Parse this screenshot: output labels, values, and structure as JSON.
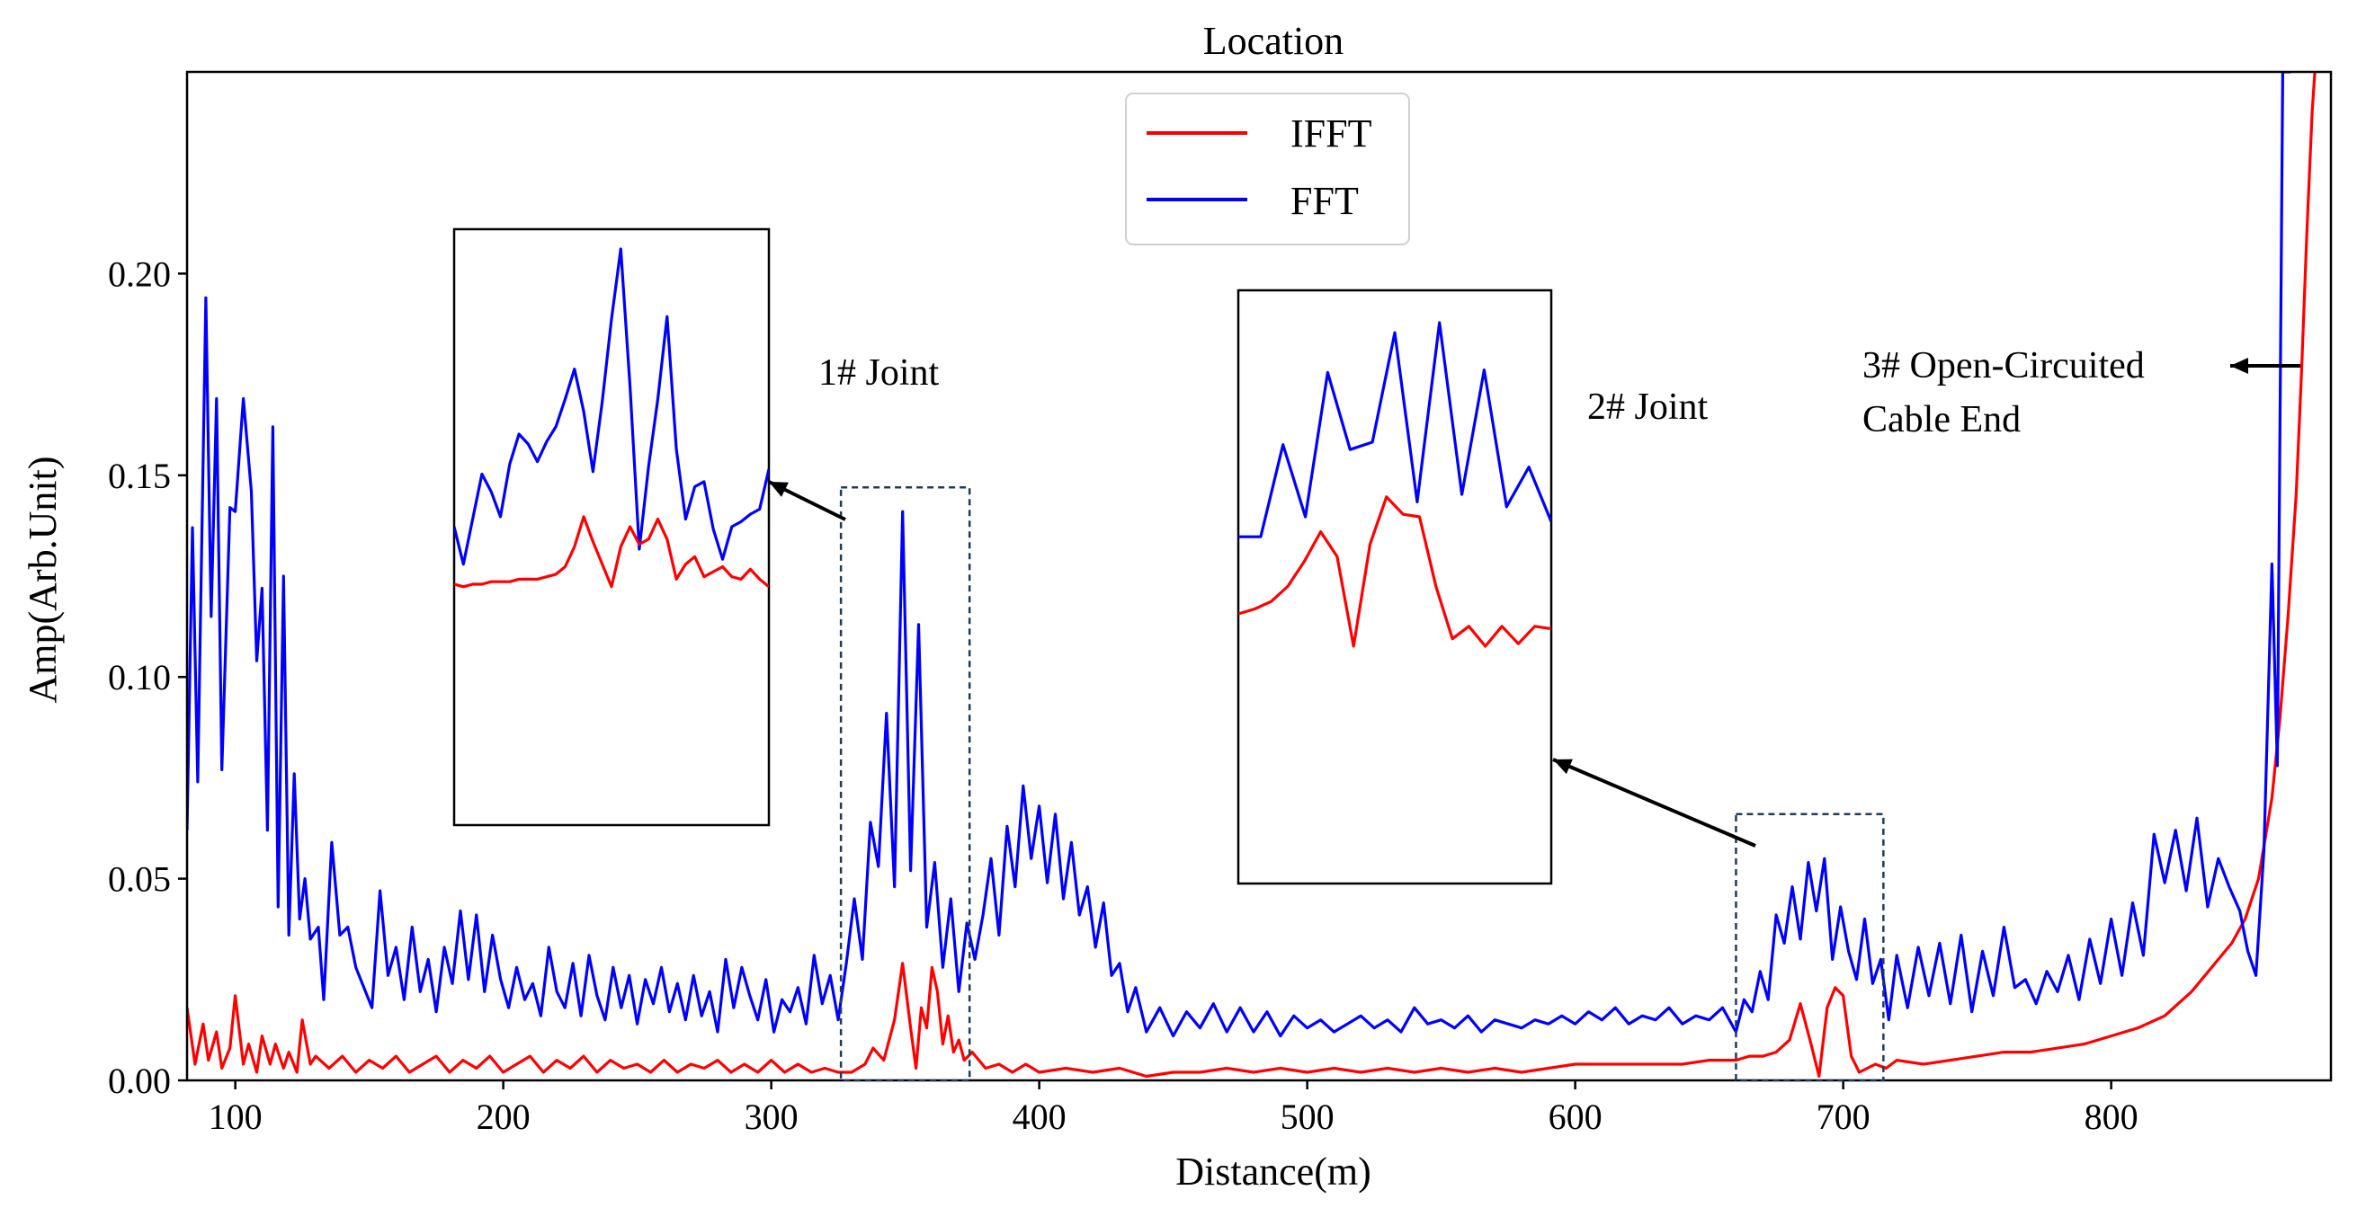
{
  "chart_data": {
    "type": "line",
    "title": "Location",
    "xlabel": "Distance(m)",
    "ylabel": "Amp(Arb.Unit)",
    "xlim": [
      82,
      882
    ],
    "ylim": [
      0,
      0.25
    ],
    "xticks": [
      100,
      200,
      300,
      400,
      500,
      600,
      700,
      800
    ],
    "yticks": [
      0.0,
      0.05,
      0.1,
      0.15,
      0.2
    ],
    "ytick_labels": [
      "0.00",
      "0.05",
      "0.10",
      "0.15",
      "0.20"
    ],
    "legend": {
      "position": "top-center",
      "entries": [
        "IFFT",
        "FFT"
      ]
    },
    "series": [
      {
        "name": "IFFT",
        "color": "#ff0000",
        "x": [
          82,
          85,
          88,
          90,
          93,
          95,
          98,
          100,
          103,
          105,
          108,
          110,
          113,
          115,
          118,
          120,
          123,
          125,
          128,
          130,
          135,
          140,
          145,
          150,
          155,
          160,
          165,
          170,
          175,
          180,
          185,
          190,
          195,
          200,
          205,
          210,
          215,
          220,
          225,
          230,
          235,
          240,
          245,
          250,
          255,
          260,
          265,
          270,
          275,
          280,
          285,
          290,
          295,
          300,
          305,
          310,
          315,
          320,
          325,
          330,
          335,
          338,
          342,
          346,
          349,
          352,
          354,
          356,
          358,
          360,
          362,
          364,
          366,
          368,
          370,
          372,
          375,
          380,
          385,
          390,
          395,
          400,
          410,
          420,
          430,
          440,
          450,
          460,
          470,
          480,
          490,
          500,
          510,
          520,
          530,
          540,
          550,
          560,
          570,
          580,
          590,
          600,
          610,
          620,
          630,
          640,
          650,
          660,
          665,
          670,
          675,
          680,
          684,
          688,
          691,
          694,
          697,
          700,
          703,
          706,
          709,
          712,
          716,
          720,
          730,
          740,
          750,
          760,
          770,
          780,
          790,
          800,
          810,
          820,
          830,
          840,
          845,
          850,
          855,
          860,
          863,
          866,
          869,
          871,
          873,
          875,
          876
        ],
        "values": [
          0.018,
          0.004,
          0.014,
          0.005,
          0.012,
          0.003,
          0.008,
          0.021,
          0.004,
          0.009,
          0.002,
          0.011,
          0.004,
          0.009,
          0.003,
          0.007,
          0.002,
          0.015,
          0.004,
          0.006,
          0.003,
          0.006,
          0.002,
          0.005,
          0.003,
          0.006,
          0.002,
          0.004,
          0.006,
          0.002,
          0.005,
          0.003,
          0.006,
          0.002,
          0.004,
          0.006,
          0.002,
          0.005,
          0.003,
          0.006,
          0.002,
          0.005,
          0.003,
          0.004,
          0.002,
          0.005,
          0.002,
          0.004,
          0.003,
          0.005,
          0.002,
          0.004,
          0.002,
          0.005,
          0.002,
          0.004,
          0.002,
          0.003,
          0.002,
          0.002,
          0.004,
          0.008,
          0.005,
          0.015,
          0.029,
          0.013,
          0.003,
          0.018,
          0.013,
          0.028,
          0.022,
          0.009,
          0.016,
          0.007,
          0.01,
          0.005,
          0.007,
          0.003,
          0.004,
          0.002,
          0.004,
          0.002,
          0.003,
          0.002,
          0.003,
          0.001,
          0.002,
          0.002,
          0.003,
          0.002,
          0.003,
          0.002,
          0.003,
          0.002,
          0.003,
          0.002,
          0.003,
          0.002,
          0.003,
          0.002,
          0.003,
          0.004,
          0.004,
          0.004,
          0.004,
          0.004,
          0.005,
          0.005,
          0.006,
          0.006,
          0.007,
          0.01,
          0.019,
          0.009,
          0.001,
          0.018,
          0.023,
          0.021,
          0.006,
          0.002,
          0.003,
          0.004,
          0.003,
          0.005,
          0.004,
          0.005,
          0.006,
          0.007,
          0.007,
          0.008,
          0.009,
          0.011,
          0.013,
          0.016,
          0.022,
          0.03,
          0.034,
          0.04,
          0.05,
          0.07,
          0.09,
          0.115,
          0.145,
          0.175,
          0.21,
          0.24,
          0.25
        ]
      },
      {
        "name": "FFT",
        "color": "#0000ff",
        "x": [
          82,
          84,
          86,
          89,
          91,
          93,
          95,
          98,
          100,
          103,
          106,
          108,
          110,
          112,
          114,
          116,
          118,
          120,
          122,
          124,
          126,
          128,
          131,
          133,
          136,
          139,
          142,
          145,
          148,
          151,
          154,
          157,
          160,
          163,
          166,
          169,
          172,
          175,
          178,
          181,
          184,
          187,
          190,
          193,
          196,
          199,
          202,
          205,
          208,
          211,
          214,
          217,
          220,
          223,
          226,
          229,
          232,
          235,
          238,
          241,
          244,
          247,
          250,
          253,
          256,
          259,
          262,
          265,
          268,
          271,
          274,
          277,
          280,
          283,
          286,
          289,
          292,
          295,
          298,
          301,
          304,
          307,
          310,
          313,
          316,
          319,
          322,
          325,
          328,
          331,
          334,
          337,
          340,
          343,
          346,
          349,
          352,
          355,
          358,
          361,
          364,
          367,
          370,
          373,
          376,
          379,
          382,
          385,
          388,
          391,
          394,
          397,
          400,
          403,
          406,
          409,
          412,
          415,
          418,
          421,
          424,
          427,
          430,
          433,
          436,
          440,
          445,
          450,
          455,
          460,
          465,
          470,
          475,
          480,
          485,
          490,
          495,
          500,
          505,
          510,
          515,
          520,
          525,
          530,
          535,
          540,
          545,
          550,
          555,
          560,
          565,
          570,
          575,
          580,
          585,
          590,
          595,
          600,
          605,
          610,
          615,
          620,
          625,
          630,
          635,
          640,
          645,
          650,
          655,
          660,
          663,
          666,
          669,
          672,
          675,
          678,
          681,
          684,
          687,
          690,
          693,
          696,
          699,
          702,
          705,
          708,
          711,
          714,
          717,
          720,
          724,
          728,
          732,
          736,
          740,
          744,
          748,
          752,
          756,
          760,
          764,
          768,
          772,
          776,
          780,
          784,
          788,
          792,
          796,
          800,
          804,
          808,
          812,
          816,
          820,
          824,
          828,
          832,
          836,
          840,
          844,
          848,
          851,
          854,
          857,
          860,
          862,
          864,
          867
        ],
        "values": [
          0.062,
          0.137,
          0.074,
          0.194,
          0.115,
          0.169,
          0.077,
          0.142,
          0.141,
          0.169,
          0.146,
          0.104,
          0.122,
          0.062,
          0.162,
          0.043,
          0.125,
          0.036,
          0.076,
          0.04,
          0.05,
          0.035,
          0.038,
          0.02,
          0.059,
          0.036,
          0.038,
          0.028,
          0.023,
          0.018,
          0.047,
          0.026,
          0.033,
          0.02,
          0.038,
          0.022,
          0.03,
          0.017,
          0.033,
          0.024,
          0.042,
          0.025,
          0.041,
          0.022,
          0.036,
          0.025,
          0.018,
          0.028,
          0.02,
          0.024,
          0.016,
          0.033,
          0.022,
          0.018,
          0.029,
          0.016,
          0.031,
          0.021,
          0.015,
          0.028,
          0.018,
          0.026,
          0.014,
          0.025,
          0.019,
          0.028,
          0.017,
          0.024,
          0.015,
          0.026,
          0.016,
          0.022,
          0.012,
          0.03,
          0.018,
          0.028,
          0.021,
          0.015,
          0.025,
          0.012,
          0.02,
          0.017,
          0.023,
          0.014,
          0.031,
          0.019,
          0.026,
          0.015,
          0.029,
          0.045,
          0.03,
          0.064,
          0.053,
          0.091,
          0.048,
          0.141,
          0.052,
          0.113,
          0.038,
          0.054,
          0.028,
          0.045,
          0.022,
          0.039,
          0.03,
          0.041,
          0.055,
          0.036,
          0.063,
          0.048,
          0.073,
          0.055,
          0.068,
          0.049,
          0.066,
          0.045,
          0.059,
          0.041,
          0.048,
          0.033,
          0.044,
          0.026,
          0.029,
          0.017,
          0.023,
          0.012,
          0.018,
          0.011,
          0.017,
          0.013,
          0.019,
          0.012,
          0.018,
          0.012,
          0.017,
          0.011,
          0.016,
          0.013,
          0.015,
          0.012,
          0.014,
          0.016,
          0.013,
          0.015,
          0.012,
          0.018,
          0.014,
          0.015,
          0.013,
          0.016,
          0.012,
          0.015,
          0.014,
          0.013,
          0.015,
          0.014,
          0.016,
          0.014,
          0.017,
          0.015,
          0.018,
          0.014,
          0.016,
          0.015,
          0.018,
          0.014,
          0.016,
          0.015,
          0.018,
          0.012,
          0.02,
          0.017,
          0.027,
          0.02,
          0.041,
          0.034,
          0.048,
          0.035,
          0.054,
          0.042,
          0.055,
          0.03,
          0.043,
          0.032,
          0.025,
          0.04,
          0.024,
          0.03,
          0.015,
          0.031,
          0.018,
          0.033,
          0.021,
          0.034,
          0.019,
          0.036,
          0.017,
          0.032,
          0.021,
          0.038,
          0.023,
          0.025,
          0.019,
          0.027,
          0.022,
          0.031,
          0.02,
          0.035,
          0.024,
          0.04,
          0.026,
          0.044,
          0.031,
          0.061,
          0.049,
          0.062,
          0.047,
          0.065,
          0.043,
          0.055,
          0.048,
          0.042,
          0.032,
          0.026,
          0.057,
          0.128,
          0.078,
          0.25,
          0.25
        ]
      }
    ],
    "annotations": [
      {
        "label": "1# Joint",
        "target_x": 350
      },
      {
        "label": "2# Joint",
        "target_x": 688
      },
      {
        "label": "3# Open-Circuited",
        "label2": "Cable End",
        "target_x": 858
      }
    ],
    "insets": [
      {
        "id": "joint1-zoom",
        "source_range_x": [
          326,
          374
        ],
        "source_range_y": [
          0,
          0.147
        ],
        "fft": [
          0.094,
          0.079,
          0.097,
          0.115,
          0.108,
          0.098,
          0.119,
          0.131,
          0.127,
          0.12,
          0.128,
          0.134,
          0.145,
          0.157,
          0.14,
          0.116,
          0.144,
          0.177,
          0.205,
          0.15,
          0.085,
          0.118,
          0.145,
          0.178,
          0.125,
          0.097,
          0.11,
          0.112,
          0.093,
          0.081,
          0.094,
          0.096,
          0.099,
          0.101,
          0.117
        ],
        "ifft": [
          0.071,
          0.07,
          0.071,
          0.071,
          0.072,
          0.072,
          0.072,
          0.073,
          0.073,
          0.073,
          0.074,
          0.075,
          0.078,
          0.086,
          0.098,
          0.088,
          0.079,
          0.07,
          0.086,
          0.094,
          0.087,
          0.089,
          0.097,
          0.089,
          0.073,
          0.079,
          0.082,
          0.074,
          0.076,
          0.078,
          0.074,
          0.073,
          0.077,
          0.073,
          0.07
        ]
      },
      {
        "id": "joint2-zoom",
        "source_range_x": [
          660,
          715
        ],
        "source_range_y": [
          0,
          0.066
        ],
        "fft": [
          0.098,
          0.098,
          0.135,
          0.106,
          0.164,
          0.133,
          0.136,
          0.18,
          0.112,
          0.184,
          0.115,
          0.165,
          0.11,
          0.126,
          0.104
        ],
        "ifft": [
          0.067,
          0.069,
          0.072,
          0.078,
          0.088,
          0.1,
          0.09,
          0.054,
          0.095,
          0.114,
          0.107,
          0.106,
          0.078,
          0.057,
          0.062,
          0.054,
          0.062,
          0.055,
          0.062,
          0.061
        ]
      }
    ]
  }
}
